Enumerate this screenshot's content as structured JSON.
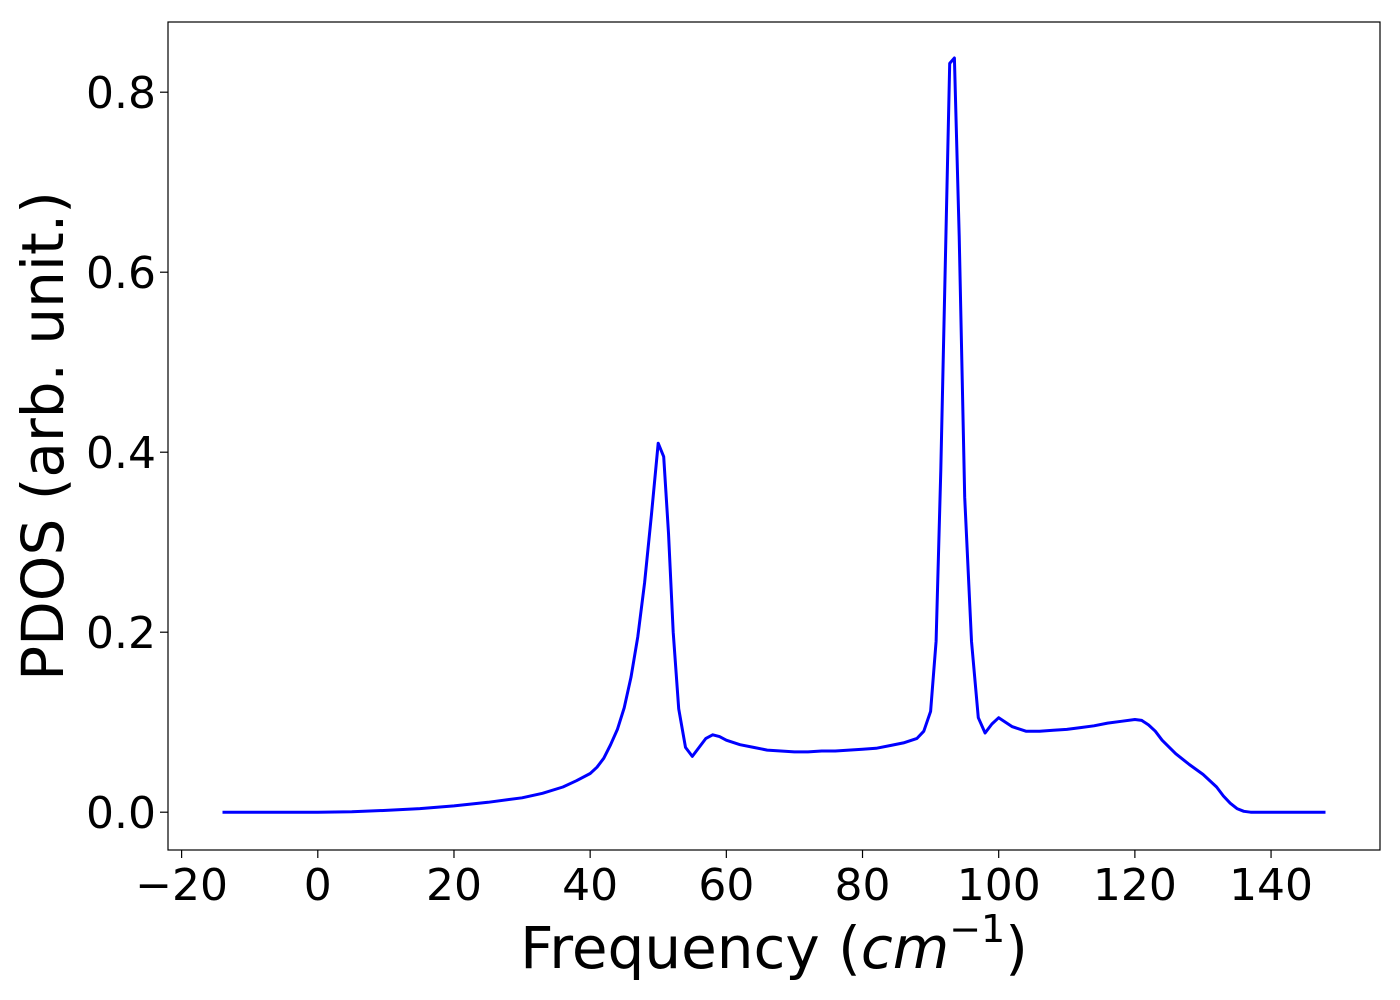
{
  "chart_data": {
    "type": "line",
    "title": "",
    "xlabel": "Frequency (",
    "xlabel_math_base": "cm",
    "xlabel_math_sup": "−1",
    "xlabel_suffix": ")",
    "ylabel": "PDOS (arb. unit.)",
    "xlim": [
      -22,
      156
    ],
    "ylim": [
      -0.042,
      0.878
    ],
    "xticks": [
      -20,
      0,
      20,
      40,
      60,
      80,
      100,
      120,
      140
    ],
    "xtick_labels": [
      "−20",
      "0",
      "20",
      "40",
      "60",
      "80",
      "100",
      "120",
      "140"
    ],
    "yticks": [
      0.0,
      0.2,
      0.4,
      0.6,
      0.8
    ],
    "ytick_labels": [
      "0.0",
      "0.2",
      "0.4",
      "0.6",
      "0.8"
    ],
    "grid": false,
    "series": [
      {
        "color": "#0000ff",
        "x": [
          -14,
          -5,
          0,
          5,
          10,
          15,
          20,
          25,
          30,
          33,
          36,
          38,
          40,
          41,
          42,
          43,
          44,
          45,
          46,
          47,
          48,
          49,
          50,
          50.8,
          51.5,
          52.2,
          53,
          54,
          55,
          56,
          57,
          58,
          59,
          60,
          62,
          64,
          66,
          68,
          70,
          72,
          74,
          76,
          78,
          80,
          82,
          84,
          86,
          88,
          89,
          90,
          90.8,
          91.5,
          92.3,
          92.8,
          93.5,
          94.2,
          95,
          96,
          97,
          98,
          99,
          100,
          101,
          102,
          104,
          106,
          108,
          110,
          112,
          114,
          116,
          118,
          120,
          121,
          122,
          123,
          124,
          126,
          128,
          130,
          132,
          133,
          134,
          135,
          136,
          137,
          140,
          145,
          148
        ],
        "y": [
          0.0,
          0.0,
          0.0,
          0.0005,
          0.002,
          0.004,
          0.007,
          0.011,
          0.016,
          0.021,
          0.028,
          0.035,
          0.043,
          0.05,
          0.06,
          0.075,
          0.092,
          0.116,
          0.15,
          0.195,
          0.255,
          0.33,
          0.41,
          0.395,
          0.31,
          0.2,
          0.115,
          0.072,
          0.062,
          0.072,
          0.082,
          0.086,
          0.084,
          0.08,
          0.075,
          0.072,
          0.069,
          0.068,
          0.067,
          0.067,
          0.068,
          0.068,
          0.069,
          0.07,
          0.071,
          0.074,
          0.077,
          0.082,
          0.09,
          0.112,
          0.19,
          0.38,
          0.66,
          0.832,
          0.838,
          0.64,
          0.35,
          0.19,
          0.105,
          0.088,
          0.098,
          0.105,
          0.1,
          0.095,
          0.09,
          0.09,
          0.091,
          0.092,
          0.094,
          0.096,
          0.099,
          0.101,
          0.103,
          0.102,
          0.097,
          0.09,
          0.08,
          0.065,
          0.053,
          0.042,
          0.028,
          0.018,
          0.01,
          0.004,
          0.001,
          0.0,
          0.0,
          0.0,
          0.0
        ]
      }
    ]
  }
}
